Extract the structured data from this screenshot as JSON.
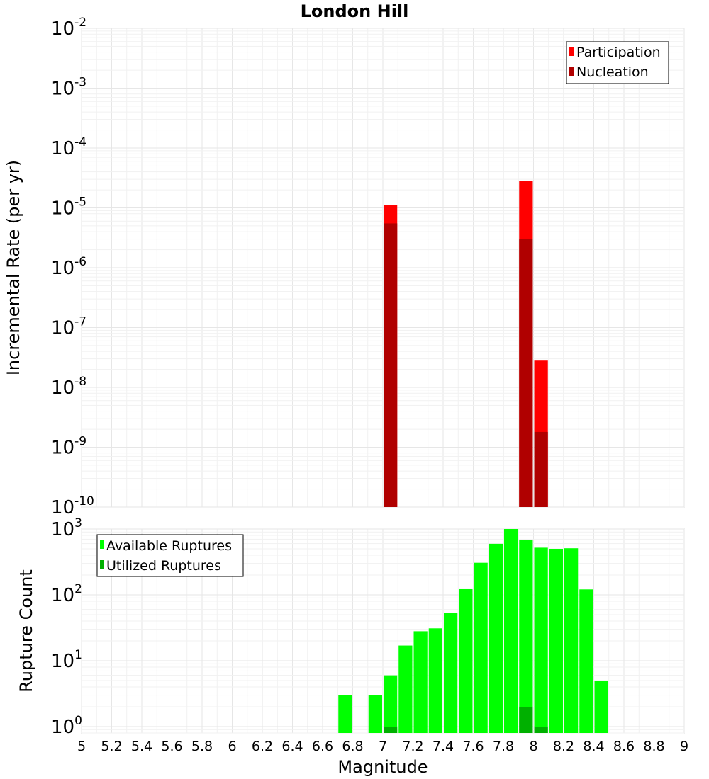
{
  "chart_data": [
    {
      "type": "bar",
      "panel": "top",
      "title": "London Hill",
      "xlabel": "",
      "ylabel": "Incremental Rate (per yr)",
      "yscale": "log",
      "ylim": [
        1e-10,
        0.01
      ],
      "xlim": [
        5,
        9
      ],
      "y_ticks": [
        {
          "base": "10",
          "exp": "-10"
        },
        {
          "base": "10",
          "exp": "-9"
        },
        {
          "base": "10",
          "exp": "-8"
        },
        {
          "base": "10",
          "exp": "-7"
        },
        {
          "base": "10",
          "exp": "-6"
        },
        {
          "base": "10",
          "exp": "-5"
        },
        {
          "base": "10",
          "exp": "-4"
        },
        {
          "base": "10",
          "exp": "-3"
        },
        {
          "base": "10",
          "exp": "-2"
        }
      ],
      "legend": {
        "position": "top-right",
        "entries": [
          {
            "label": "Participation",
            "color": "#ff0000"
          },
          {
            "label": "Nucleation",
            "color": "#b00000"
          }
        ]
      },
      "series": [
        {
          "name": "Participation",
          "color": "#ff0000",
          "points": [
            {
              "x": 7.05,
              "y": 1.1e-05
            },
            {
              "x": 7.95,
              "y": 2.8e-05
            },
            {
              "x": 8.05,
              "y": 2.8e-08
            }
          ]
        },
        {
          "name": "Nucleation",
          "color": "#b00000",
          "points": [
            {
              "x": 7.05,
              "y": 5.5e-06
            },
            {
              "x": 7.95,
              "y": 3e-06
            },
            {
              "x": 8.05,
              "y": 1.8e-09
            }
          ]
        }
      ]
    },
    {
      "type": "bar",
      "panel": "bottom",
      "title": "",
      "xlabel": "Magnitude",
      "ylabel": "Rupture Count",
      "yscale": "log",
      "ylim": [
        0.8,
        1000
      ],
      "xlim": [
        5,
        9
      ],
      "x_ticks": [
        "5",
        "5.2",
        "5.4",
        "5.6",
        "5.8",
        "6",
        "6.2",
        "6.4",
        "6.6",
        "6.8",
        "7",
        "7.2",
        "7.4",
        "7.6",
        "7.8",
        "8",
        "8.2",
        "8.4",
        "8.6",
        "8.8",
        "9"
      ],
      "y_ticks": [
        {
          "base": "10",
          "exp": "0"
        },
        {
          "base": "10",
          "exp": "1"
        },
        {
          "base": "10",
          "exp": "2"
        },
        {
          "base": "10",
          "exp": "3"
        }
      ],
      "legend": {
        "position": "top-left",
        "entries": [
          {
            "label": "Available Ruptures",
            "color": "#00ff00"
          },
          {
            "label": "Utilized Ruptures",
            "color": "#00b000"
          }
        ]
      },
      "series": [
        {
          "name": "Available Ruptures",
          "color": "#00ff00",
          "points": [
            {
              "x": 6.75,
              "y": 3
            },
            {
              "x": 6.95,
              "y": 3
            },
            {
              "x": 7.05,
              "y": 6
            },
            {
              "x": 7.15,
              "y": 17
            },
            {
              "x": 7.25,
              "y": 28
            },
            {
              "x": 7.35,
              "y": 31
            },
            {
              "x": 7.45,
              "y": 53
            },
            {
              "x": 7.55,
              "y": 122
            },
            {
              "x": 7.65,
              "y": 307
            },
            {
              "x": 7.75,
              "y": 596
            },
            {
              "x": 7.85,
              "y": 1000
            },
            {
              "x": 7.95,
              "y": 689
            },
            {
              "x": 8.05,
              "y": 520
            },
            {
              "x": 8.15,
              "y": 500
            },
            {
              "x": 8.25,
              "y": 510
            },
            {
              "x": 8.35,
              "y": 121
            },
            {
              "x": 8.45,
              "y": 5
            }
          ]
        },
        {
          "name": "Utilized Ruptures",
          "color": "#00b000",
          "points": [
            {
              "x": 7.05,
              "y": 1
            },
            {
              "x": 7.95,
              "y": 2
            },
            {
              "x": 8.05,
              "y": 1
            }
          ]
        }
      ]
    }
  ]
}
